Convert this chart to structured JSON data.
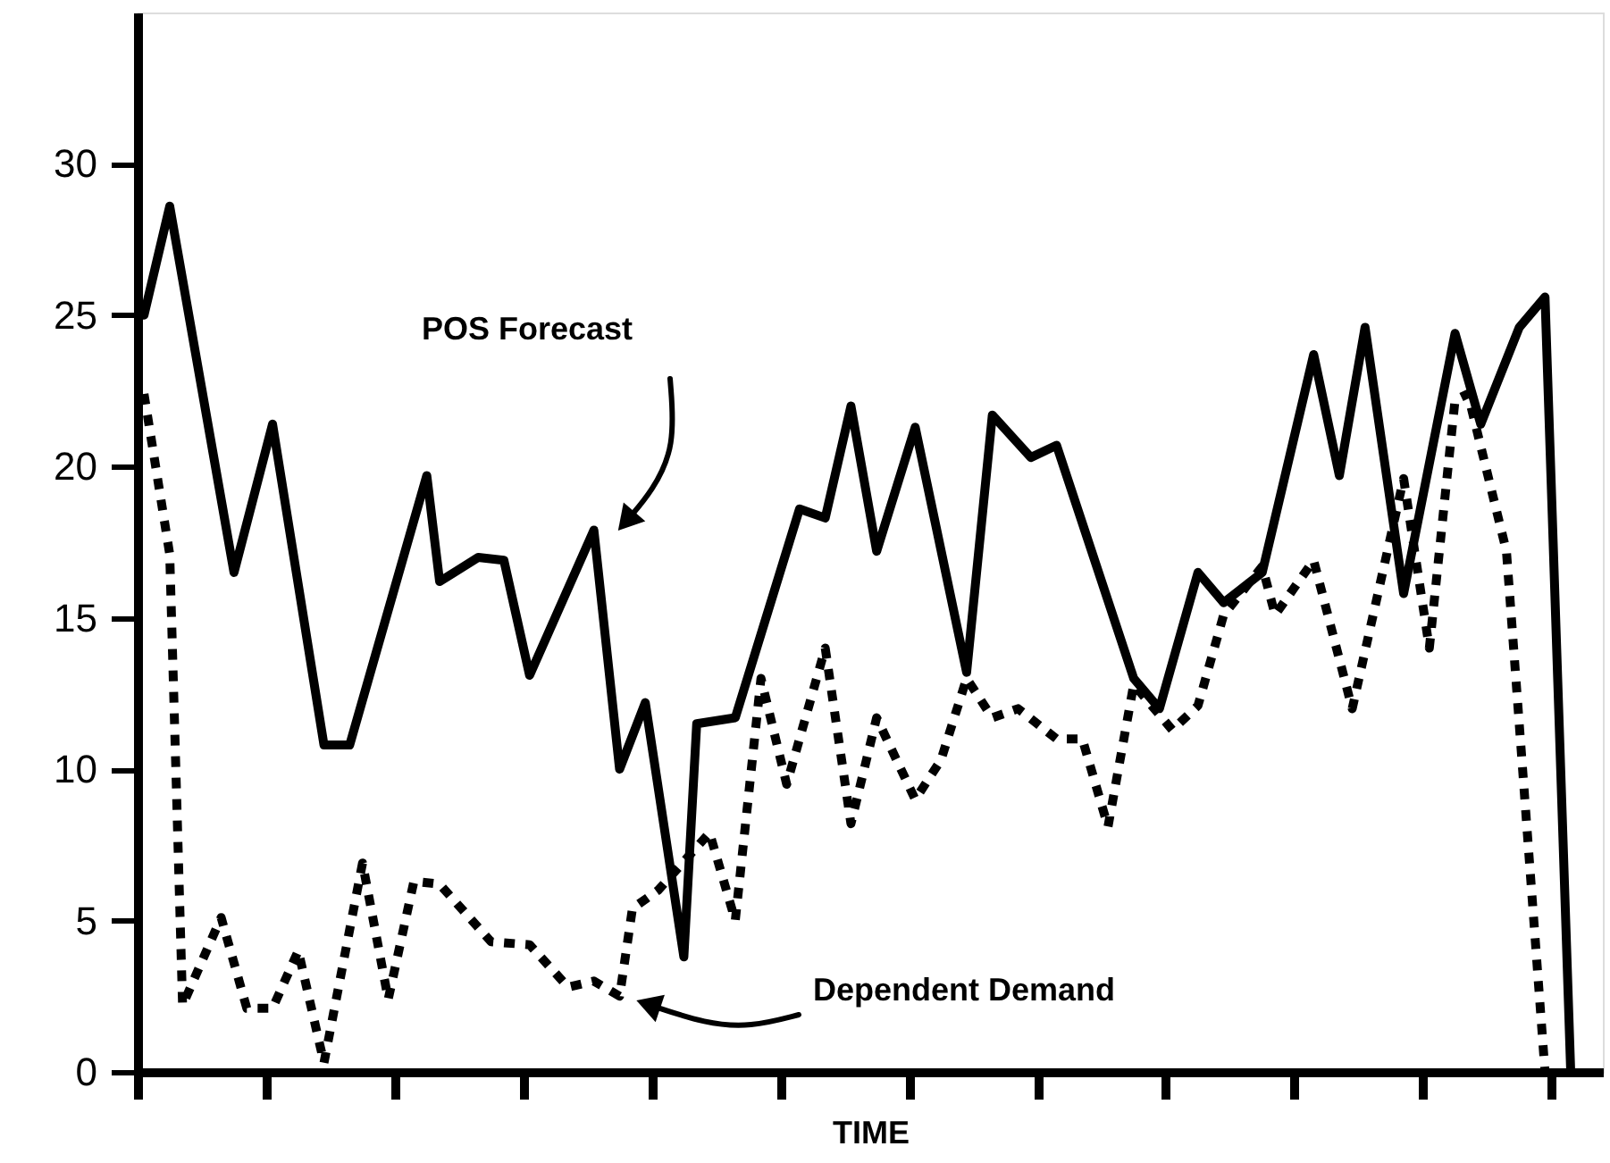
{
  "chart_data": {
    "type": "line",
    "xlabel": "TIME",
    "categories": [
      null,
      null,
      null,
      null,
      null,
      null,
      null,
      null,
      null,
      null,
      null,
      null,
      null,
      null,
      null,
      null,
      null,
      null,
      null,
      null,
      null,
      null,
      null,
      null,
      null,
      null,
      null,
      null,
      null,
      null,
      null,
      null,
      null,
      null,
      null,
      null,
      null,
      null,
      null,
      null,
      null,
      null,
      null,
      null,
      null,
      null,
      null,
      null,
      null,
      null,
      null,
      null,
      null,
      null,
      null,
      null,
      null,
      null,
      null,
      null,
      null,
      null,
      null,
      null,
      null,
      null,
      null,
      null,
      null,
      null,
      null,
      null,
      null,
      null,
      null,
      null,
      null,
      null,
      null,
      null,
      null,
      null,
      null,
      null,
      null,
      null,
      null,
      null,
      null,
      null,
      null,
      null,
      null,
      null,
      null,
      null,
      null,
      null,
      null,
      null,
      null,
      null,
      null,
      null,
      null,
      null,
      null,
      null,
      null,
      null,
      null,
      null,
      null,
      null
    ],
    "ylim": [
      0,
      35
    ],
    "yticks": [
      0,
      5,
      10,
      15,
      20,
      25,
      30
    ],
    "tick_labels": "y",
    "grid": false,
    "series": [
      {
        "color": "#000000",
        "line_style": "solid",
        "values": [
          25,
          null,
          28.6,
          null,
          null,
          null,
          null,
          16.5,
          null,
          null,
          21.4,
          null,
          null,
          null,
          10.8,
          null,
          10.8,
          null,
          null,
          null,
          null,
          null,
          19.7,
          16.2,
          null,
          null,
          17,
          null,
          16.9,
          null,
          13.1,
          null,
          null,
          null,
          null,
          17.9,
          null,
          10,
          null,
          12.2,
          null,
          null,
          3.8,
          11.5,
          null,
          null,
          11.7,
          null,
          null,
          null,
          null,
          18.6,
          null,
          18.3,
          null,
          22,
          null,
          17.2,
          null,
          null,
          21.3,
          null,
          null,
          null,
          13.2,
          null,
          21.7,
          null,
          null,
          20.3,
          null,
          20.7,
          null,
          null,
          null,
          null,
          null,
          13,
          null,
          12,
          null,
          null,
          16.5,
          null,
          15.5,
          null,
          null,
          16.5,
          null,
          null,
          null,
          23.7,
          null,
          19.7,
          null,
          24.6,
          null,
          null,
          15.8,
          null,
          null,
          null,
          24.4,
          null,
          21.4,
          null,
          null,
          24.6,
          null,
          25.6,
          null,
          0,
          null,
          null
        ]
      },
      {
        "color": "#000000",
        "line_style": "dotted",
        "values": [
          22.4,
          null,
          17.1,
          2.2,
          null,
          null,
          5.1,
          null,
          2.1,
          null,
          2.1,
          null,
          4,
          null,
          0.3,
          null,
          null,
          6.9,
          null,
          2.4,
          null,
          6.3,
          null,
          6.2,
          null,
          null,
          null,
          4.3,
          null,
          null,
          4.2,
          null,
          null,
          2.8,
          null,
          3,
          null,
          2.5,
          5.4,
          null,
          6,
          null,
          null,
          null,
          7.9,
          null,
          5,
          null,
          13,
          null,
          9.5,
          null,
          null,
          14,
          null,
          8.2,
          null,
          11.7,
          null,
          null,
          9,
          null,
          10.3,
          null,
          13,
          null,
          11.7,
          null,
          12,
          null,
          null,
          11,
          null,
          11,
          null,
          8.1,
          null,
          12.8,
          null,
          null,
          11.3,
          null,
          12.1,
          null,
          15.1,
          null,
          null,
          16.7,
          15.1,
          null,
          null,
          16.9,
          null,
          null,
          12,
          null,
          null,
          null,
          19.6,
          null,
          14,
          null,
          22.2,
          22.4,
          null,
          null,
          17.2,
          null,
          null,
          0,
          null,
          null,
          null,
          null
        ]
      }
    ],
    "annotations": [
      "POS Forecast",
      "Dependent Demand"
    ]
  }
}
